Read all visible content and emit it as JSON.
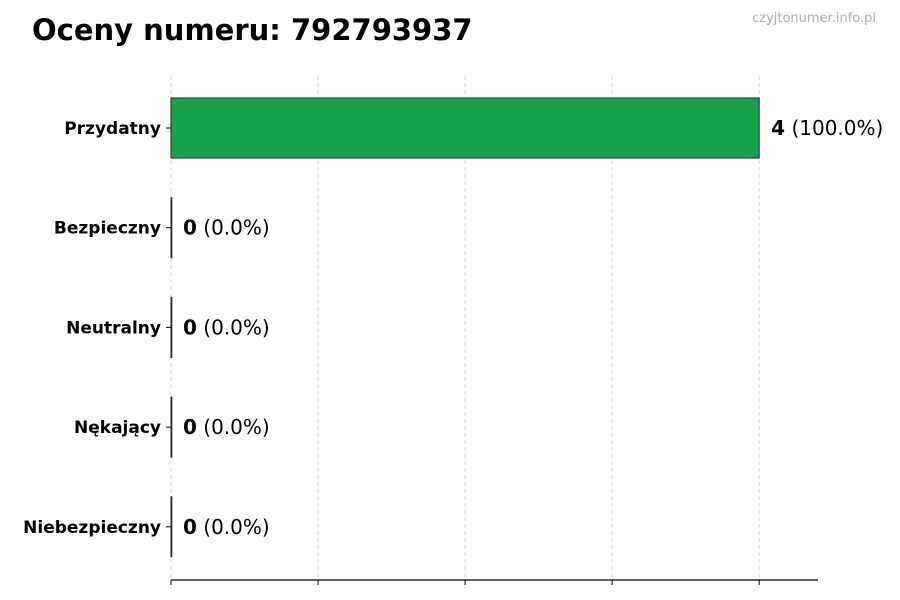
{
  "chart_data": {
    "type": "bar",
    "orientation": "horizontal",
    "title": "Oceny numeru: 792793937",
    "watermark": "czyjtonumer.info.pl",
    "categories": [
      "Przydatny",
      "Bezpieczny",
      "Neutralny",
      "Nękający",
      "Niebezpieczny"
    ],
    "values": [
      4,
      0,
      0,
      0,
      0
    ],
    "percent_labels": [
      "(100.0%)",
      "(0.0%)",
      "(0.0%)",
      "(0.0%)",
      "(0.0%)"
    ],
    "xlim": [
      0,
      4.4
    ],
    "xticks": [
      0,
      1,
      2,
      3,
      4
    ],
    "grid": "x-dashed",
    "bar_color": "#16a34a",
    "xlabel": "",
    "ylabel": ""
  }
}
